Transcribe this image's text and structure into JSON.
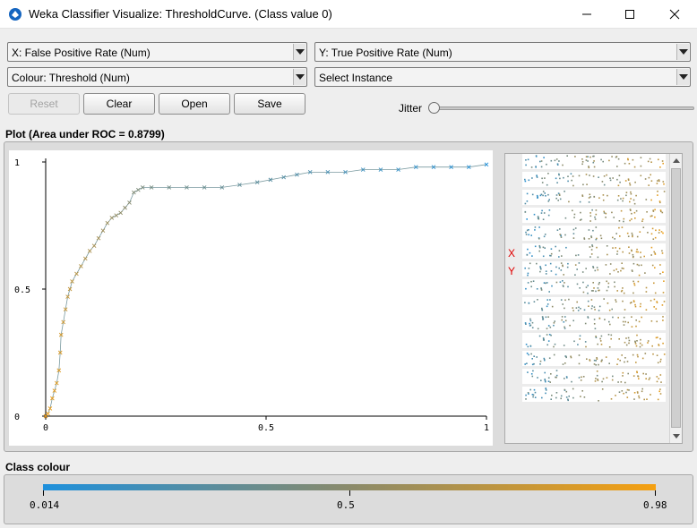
{
  "window": {
    "title": "Weka Classifier Visualize: ThresholdCurve. (Class value 0)",
    "minimize_glyph": "—",
    "maximize_glyph": "☐",
    "close_glyph": "✕"
  },
  "controls": {
    "x_axis": "X: False Positive Rate (Num)",
    "y_axis": "Y: True Positive Rate (Num)",
    "colour": "Colour: Threshold (Num)",
    "instance": "Select Instance",
    "reset_label": "Reset",
    "clear_label": "Clear",
    "open_label": "Open",
    "save_label": "Save",
    "jitter_label": "Jitter",
    "jitter_value": 0
  },
  "plot": {
    "label": "Plot (Area under ROC = 0.8799)",
    "x_label": "X",
    "y_label": "Y"
  },
  "chart_data": {
    "type": "line",
    "title": "Plot (Area under ROC = 0.8799)",
    "xlabel": "False Positive Rate",
    "ylabel": "True Positive Rate",
    "xlim": [
      0,
      1
    ],
    "ylim": [
      0,
      1
    ],
    "x_ticks": [
      "0",
      "0.5",
      "1"
    ],
    "y_ticks": [
      "0",
      "0.5",
      "1"
    ],
    "marker": "x",
    "area_under_roc": 0.8799,
    "points": [
      [
        0.0,
        0.0
      ],
      [
        0.005,
        0.01
      ],
      [
        0.01,
        0.03
      ],
      [
        0.015,
        0.07
      ],
      [
        0.02,
        0.1
      ],
      [
        0.025,
        0.13
      ],
      [
        0.03,
        0.18
      ],
      [
        0.033,
        0.25
      ],
      [
        0.035,
        0.32
      ],
      [
        0.04,
        0.37
      ],
      [
        0.045,
        0.42
      ],
      [
        0.05,
        0.47
      ],
      [
        0.055,
        0.5
      ],
      [
        0.06,
        0.53
      ],
      [
        0.07,
        0.56
      ],
      [
        0.08,
        0.59
      ],
      [
        0.09,
        0.62
      ],
      [
        0.1,
        0.65
      ],
      [
        0.11,
        0.67
      ],
      [
        0.12,
        0.7
      ],
      [
        0.13,
        0.73
      ],
      [
        0.14,
        0.76
      ],
      [
        0.15,
        0.78
      ],
      [
        0.16,
        0.79
      ],
      [
        0.17,
        0.8
      ],
      [
        0.18,
        0.82
      ],
      [
        0.19,
        0.84
      ],
      [
        0.2,
        0.88
      ],
      [
        0.21,
        0.89
      ],
      [
        0.22,
        0.9
      ],
      [
        0.24,
        0.9
      ],
      [
        0.28,
        0.9
      ],
      [
        0.32,
        0.9
      ],
      [
        0.36,
        0.9
      ],
      [
        0.4,
        0.9
      ],
      [
        0.44,
        0.91
      ],
      [
        0.48,
        0.92
      ],
      [
        0.51,
        0.93
      ],
      [
        0.54,
        0.94
      ],
      [
        0.57,
        0.95
      ],
      [
        0.6,
        0.96
      ],
      [
        0.64,
        0.96
      ],
      [
        0.68,
        0.96
      ],
      [
        0.72,
        0.97
      ],
      [
        0.76,
        0.97
      ],
      [
        0.8,
        0.97
      ],
      [
        0.84,
        0.98
      ],
      [
        0.88,
        0.98
      ],
      [
        0.92,
        0.98
      ],
      [
        0.96,
        0.98
      ],
      [
        1.0,
        0.99
      ]
    ]
  },
  "colours": {
    "low": "#1e90dc",
    "mid": "#8a8a6a",
    "high": "#f5a011"
  },
  "class_colour": {
    "label": "Class colour",
    "min": "0.014",
    "mid": "0.5",
    "max": "0.98"
  }
}
